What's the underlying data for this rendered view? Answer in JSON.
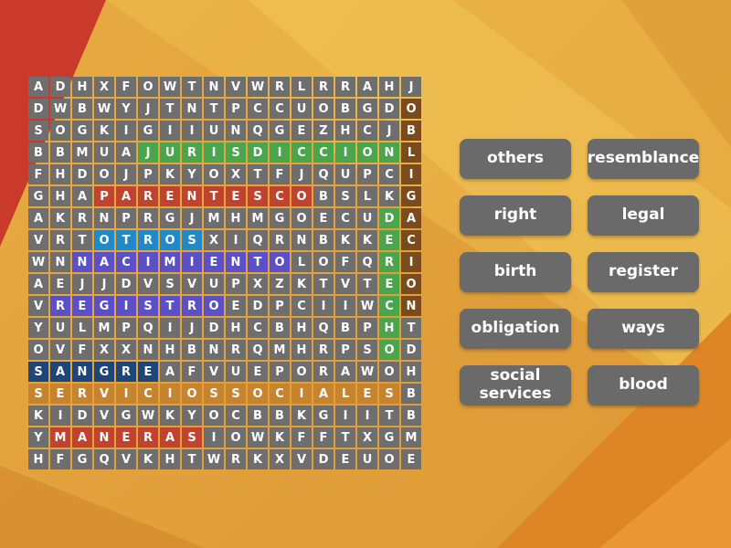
{
  "grid": {
    "cols": 18,
    "rows_count": 18,
    "rows": [
      "ADHXFOWTNVWRLRRAHJ",
      "DWBWYJTNTPCCUOBGDO",
      "SOGKIGIIUNQGEZHCJB",
      "BBMUAJURISDICCIONL",
      "FHDOJPKYOXTFJQUPCI",
      "GHAPARENTESCOBSLKG",
      "AKRNPRGJMHMGOECUDA",
      "VRTOTROSXIQRNBKKEC",
      "WNNACIMIENTOLOFQRI",
      "AEJJDVSVUPXZKTVTEO",
      "VREGISTROEDPCIIWCN",
      "YULMPQIJDHCBHQBPHT",
      "OVFXXNHBNRQMHRPSOD",
      "SANGREAFVUEPORAWOH",
      "SERVICIOSSOCIALESB",
      "KIDVGWKYOCBBKGIITB",
      "YMANERASIOWKFFTXGM",
      "HFGQVKHTWRKXVDEUOE"
    ],
    "placements": [
      {
        "word": "JURISDICCION",
        "row": 4,
        "col": 6,
        "dir": "h",
        "color": "green"
      },
      {
        "word": "PARENTESCO",
        "row": 6,
        "col": 4,
        "dir": "h",
        "color": "red"
      },
      {
        "word": "OTROS",
        "row": 8,
        "col": 4,
        "dir": "h",
        "color": "blue"
      },
      {
        "word": "NACIMIENTO",
        "row": 9,
        "col": 3,
        "dir": "h",
        "color": "purple"
      },
      {
        "word": "REGISTRO",
        "row": 11,
        "col": 2,
        "dir": "h",
        "color": "purple"
      },
      {
        "word": "SANGRE",
        "row": 14,
        "col": 1,
        "dir": "h",
        "color": "navy"
      },
      {
        "word": "SERVICIOSSOCIALES",
        "row": 15,
        "col": 1,
        "dir": "h",
        "color": "orange"
      },
      {
        "word": "MANERAS",
        "row": 17,
        "col": 2,
        "dir": "h",
        "color": "red"
      },
      {
        "word": "DERECHO",
        "row": 7,
        "col": 17,
        "dir": "v",
        "color": "green"
      },
      {
        "word": "OBLIGACION",
        "row": 2,
        "col": 18,
        "dir": "v",
        "color": "brown"
      }
    ],
    "highlight_colors": {
      "green": "#4aa54d",
      "red": "#c0432f",
      "blue": "#2089c9",
      "purple": "#5b50c8",
      "navy": "#1e4679",
      "orange": "#c8832f",
      "brown": "#7b4b1d"
    },
    "cell_color": "#6f6e6e",
    "letter_color": "#ffffff"
  },
  "word_bank": {
    "words": [
      "others",
      "resemblance",
      "right",
      "legal",
      "birth",
      "register",
      "obligation",
      "ways",
      "social services",
      "blood"
    ],
    "chip_color": "#6b6a6a",
    "text_color": "#ffffff"
  },
  "background": {
    "base_color": "#e2a13c",
    "red_corner_color": "#c93a2b",
    "bottom_right_color": "#de8626"
  }
}
